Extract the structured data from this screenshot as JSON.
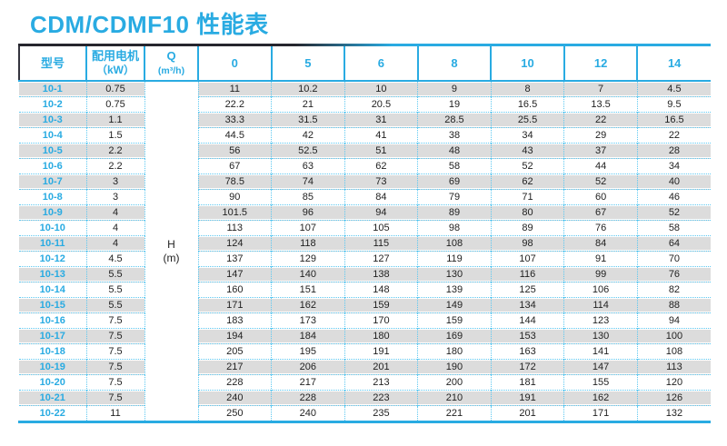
{
  "title": "CDM/CDMF10 性能表",
  "colors": {
    "accent_cyan": "#29abe2",
    "dotted_grid_cyan": "#5cc8f1",
    "stripe_gray": "#dcdcdc",
    "dark_rule": "#26262e"
  },
  "table": {
    "headers": {
      "model": "型号",
      "motor_line1": "配用电机",
      "motor_line2": "（kW）",
      "q_line1": "Q",
      "q_line2": "(m³/h)",
      "flow_columns": [
        "0",
        "5",
        "6",
        "8",
        "10",
        "12",
        "14"
      ]
    },
    "merged_cell": {
      "line1": "H",
      "line2": "(m)"
    },
    "rows": [
      {
        "model": "10-1",
        "kw": "0.75",
        "values": [
          "11",
          "10.2",
          "10",
          "9",
          "8",
          "7",
          "4.5"
        ]
      },
      {
        "model": "10-2",
        "kw": "0.75",
        "values": [
          "22.2",
          "21",
          "20.5",
          "19",
          "16.5",
          "13.5",
          "9.5"
        ]
      },
      {
        "model": "10-3",
        "kw": "1.1",
        "values": [
          "33.3",
          "31.5",
          "31",
          "28.5",
          "25.5",
          "22",
          "16.5"
        ]
      },
      {
        "model": "10-4",
        "kw": "1.5",
        "values": [
          "44.5",
          "42",
          "41",
          "38",
          "34",
          "29",
          "22"
        ]
      },
      {
        "model": "10-5",
        "kw": "2.2",
        "values": [
          "56",
          "52.5",
          "51",
          "48",
          "43",
          "37",
          "28"
        ]
      },
      {
        "model": "10-6",
        "kw": "2.2",
        "values": [
          "67",
          "63",
          "62",
          "58",
          "52",
          "44",
          "34"
        ]
      },
      {
        "model": "10-7",
        "kw": "3",
        "values": [
          "78.5",
          "74",
          "73",
          "69",
          "62",
          "52",
          "40"
        ]
      },
      {
        "model": "10-8",
        "kw": "3",
        "values": [
          "90",
          "85",
          "84",
          "79",
          "71",
          "60",
          "46"
        ]
      },
      {
        "model": "10-9",
        "kw": "4",
        "values": [
          "101.5",
          "96",
          "94",
          "89",
          "80",
          "67",
          "52"
        ]
      },
      {
        "model": "10-10",
        "kw": "4",
        "values": [
          "113",
          "107",
          "105",
          "98",
          "89",
          "76",
          "58"
        ]
      },
      {
        "model": "10-11",
        "kw": "4",
        "values": [
          "124",
          "118",
          "115",
          "108",
          "98",
          "84",
          "64"
        ]
      },
      {
        "model": "10-12",
        "kw": "4.5",
        "values": [
          "137",
          "129",
          "127",
          "119",
          "107",
          "91",
          "70"
        ]
      },
      {
        "model": "10-13",
        "kw": "5.5",
        "values": [
          "147",
          "140",
          "138",
          "130",
          "116",
          "99",
          "76"
        ]
      },
      {
        "model": "10-14",
        "kw": "5.5",
        "values": [
          "160",
          "151",
          "148",
          "139",
          "125",
          "106",
          "82"
        ]
      },
      {
        "model": "10-15",
        "kw": "5.5",
        "values": [
          "171",
          "162",
          "159",
          "149",
          "134",
          "114",
          "88"
        ]
      },
      {
        "model": "10-16",
        "kw": "7.5",
        "values": [
          "183",
          "173",
          "170",
          "159",
          "144",
          "123",
          "94"
        ]
      },
      {
        "model": "10-17",
        "kw": "7.5",
        "values": [
          "194",
          "184",
          "180",
          "169",
          "153",
          "130",
          "100"
        ]
      },
      {
        "model": "10-18",
        "kw": "7.5",
        "values": [
          "205",
          "195",
          "191",
          "180",
          "163",
          "141",
          "108"
        ]
      },
      {
        "model": "10-19",
        "kw": "7.5",
        "values": [
          "217",
          "206",
          "201",
          "190",
          "172",
          "147",
          "113"
        ]
      },
      {
        "model": "10-20",
        "kw": "7.5",
        "values": [
          "228",
          "217",
          "213",
          "200",
          "181",
          "155",
          "120"
        ]
      },
      {
        "model": "10-21",
        "kw": "7.5",
        "values": [
          "240",
          "228",
          "223",
          "210",
          "191",
          "162",
          "126"
        ]
      },
      {
        "model": "10-22",
        "kw": "11",
        "values": [
          "250",
          "240",
          "235",
          "221",
          "201",
          "171",
          "132"
        ]
      }
    ]
  }
}
